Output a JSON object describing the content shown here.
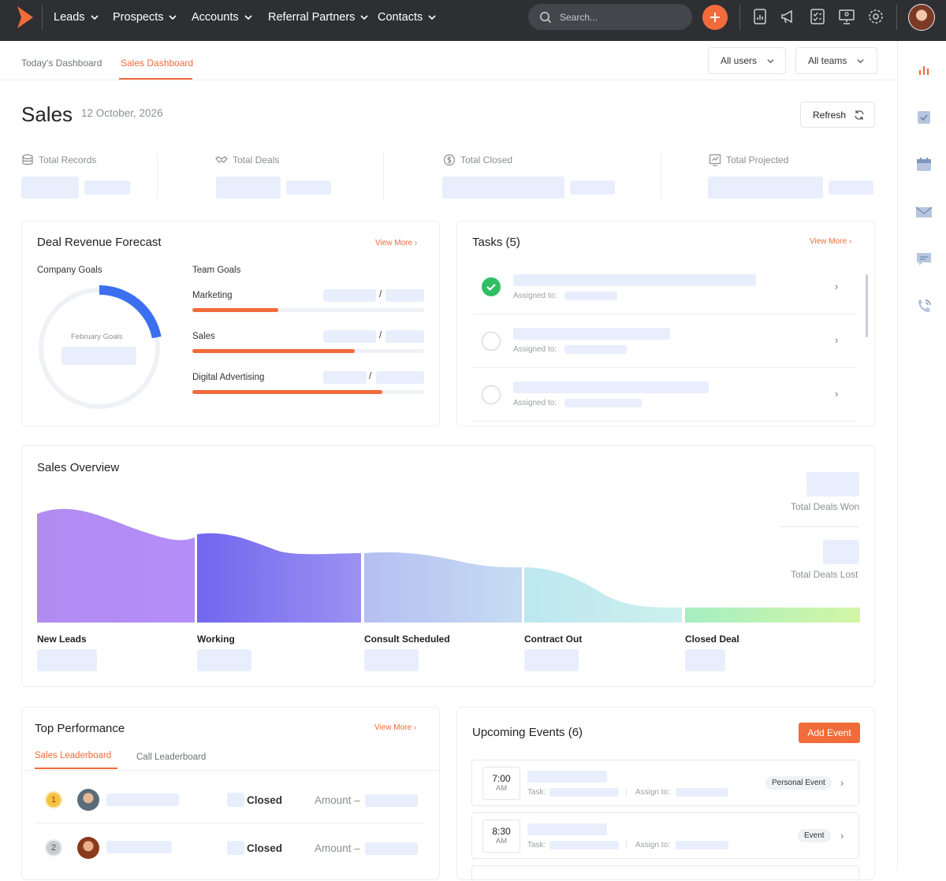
{
  "topbar": {
    "nav": [
      "Leads",
      "Prospects",
      "Accounts",
      "Referral Partners",
      "Contacts"
    ],
    "search_placeholder": "Search..."
  },
  "tabs": {
    "today": "Today's Dashboard",
    "sales": "Sales Dashboard",
    "active": "sales"
  },
  "filters": {
    "users": "All users",
    "teams": "All teams"
  },
  "page": {
    "title": "Sales",
    "date": "12 October, 2026",
    "refresh": "Refresh"
  },
  "stats": [
    "Total Records",
    "Total Deals",
    "Total Closed",
    "Total Projected"
  ],
  "forecast": {
    "title": "Deal Revenue Forecast",
    "view_more": "View More",
    "company_goals": "Company Goals",
    "donut_label": "February Goals",
    "donut_progress": 0.22,
    "team_goals": "Team Goals",
    "slash": "/",
    "goals": [
      {
        "name": "Marketing",
        "progress": 0.37
      },
      {
        "name": "Sales",
        "progress": 0.7
      },
      {
        "name": "Digital Advertising",
        "progress": 0.82
      }
    ]
  },
  "tasks": {
    "title": "Tasks (5)",
    "view_more": "View More",
    "assigned_label": "Assigned to:",
    "items": [
      {
        "done": true
      },
      {
        "done": false
      },
      {
        "done": false
      }
    ]
  },
  "overview": {
    "title": "Sales Overview",
    "won": "Total Deals Won",
    "lost": "Total Deals Lost",
    "stages": [
      "New Leads",
      "Working",
      "Consult Scheduled",
      "Contract Out",
      "Closed Deal"
    ]
  },
  "performance": {
    "title": "Top Performance",
    "view_more": "View More",
    "tabs": [
      "Sales Leaderboard",
      "Call Leaderboard"
    ],
    "rows": [
      {
        "rank": "1",
        "status": "Closed",
        "amount": "Amount –"
      },
      {
        "rank": "2",
        "status": "Closed",
        "amount": "Amount –"
      }
    ]
  },
  "events": {
    "title": "Upcoming Events (6)",
    "add": "Add Event",
    "task_label": "Task:",
    "assign_label": "Assign to:",
    "items": [
      {
        "time": "7:00",
        "ampm": "AM",
        "type": "Personal Event"
      },
      {
        "time": "8:30",
        "ampm": "AM",
        "type": "Event"
      }
    ]
  }
}
